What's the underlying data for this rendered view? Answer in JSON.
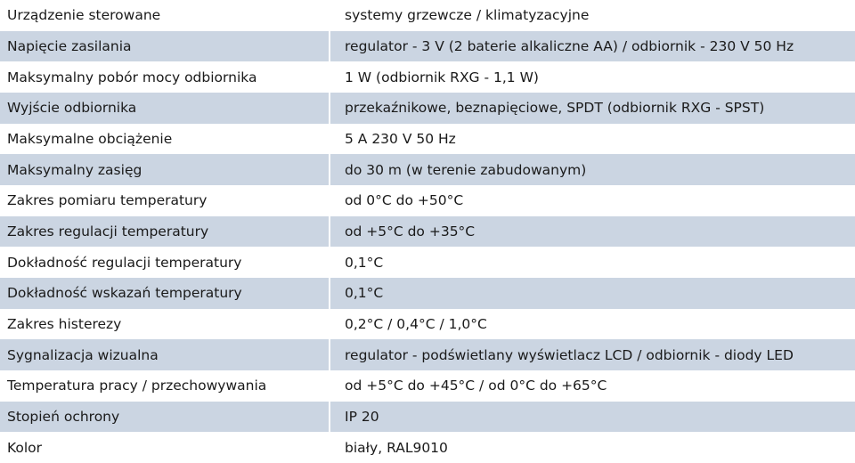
{
  "table": {
    "rows": [
      [
        "Urządzenie sterowane",
        "systemy grzewcze / klimatyzacyjne"
      ],
      [
        "Napięcie zasilania",
        "regulator - 3 V (2 baterie alkaliczne AA)  / odbiornik - 230 V 50 Hz"
      ],
      [
        "Maksymalny pobór mocy odbiornika",
        "1 W (odbiornik RXG - 1,1 W)"
      ],
      [
        "Wyjście odbiornika",
        "przekaźnikowe, beznapięciowe, SPDT (odbiornik RXG - SPST)"
      ],
      [
        "Maksymalne obciążenie",
        "5 A 230 V 50 Hz"
      ],
      [
        "Maksymalny zasięg",
        "do 30 m (w terenie zabudowanym)"
      ],
      [
        "Zakres pomiaru temperatury",
        "od 0°C do +50°C"
      ],
      [
        "Zakres regulacji temperatury",
        "od +5°C do +35°C"
      ],
      [
        "Dokładność regulacji temperatury",
        "0,1°C"
      ],
      [
        "Dokładność wskazań temperatury",
        "0,1°C"
      ],
      [
        "Zakres histerezy",
        "0,2°C / 0,4°C / 1,0°C"
      ],
      [
        "Sygnalizacja wizualna",
        "regulator - podświetlany wyświetlacz LCD / odbiornik - diody LED"
      ],
      [
        "Temperatura pracy / przechowywania",
        "od +5°C do +45°C / od 0°C do +65°C"
      ],
      [
        "Stopień ochrony",
        "IP 20"
      ],
      [
        "Kolor",
        "biały, RAL9010"
      ]
    ]
  }
}
